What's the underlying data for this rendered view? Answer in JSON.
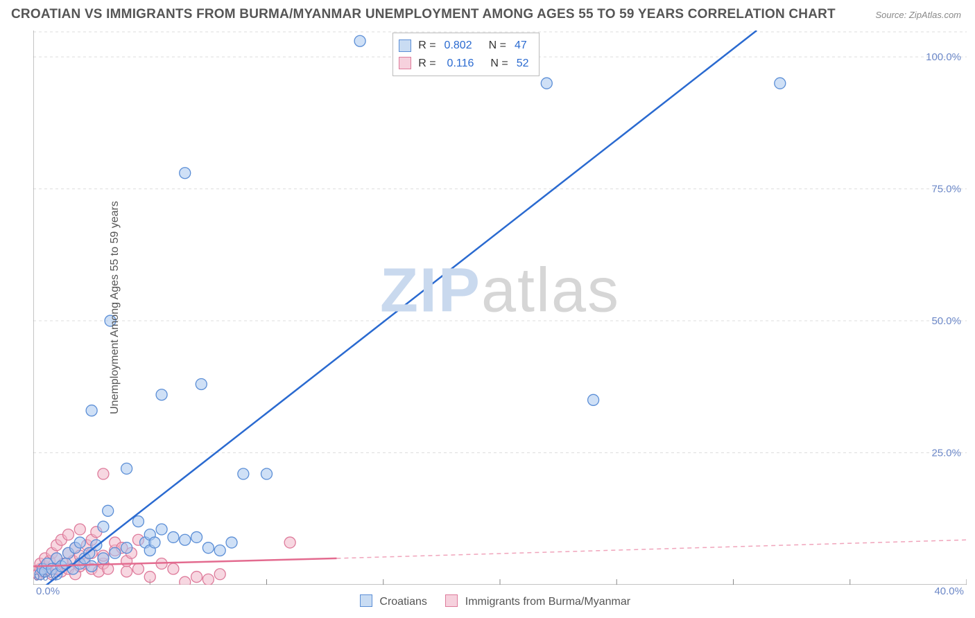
{
  "title": "CROATIAN VS IMMIGRANTS FROM BURMA/MYANMAR UNEMPLOYMENT AMONG AGES 55 TO 59 YEARS CORRELATION CHART",
  "source": "Source: ZipAtlas.com",
  "ylabel": "Unemployment Among Ages 55 to 59 years",
  "watermark_a": "ZIP",
  "watermark_b": "atlas",
  "chart": {
    "type": "scatter",
    "xlim": [
      0,
      40
    ],
    "ylim": [
      0,
      105
    ],
    "xticks": [
      0,
      5,
      10,
      15,
      20,
      25,
      30,
      35,
      40
    ],
    "xtick_labels_show": [
      0,
      40
    ],
    "xtick_labels": {
      "0": "0.0%",
      "40": "40.0%"
    },
    "yticks": [
      25,
      50,
      75,
      100
    ],
    "ytick_labels": {
      "25": "25.0%",
      "50": "50.0%",
      "75": "75.0%",
      "100": "100.0%"
    },
    "grid_color": "#dddddd",
    "background": "#ffffff",
    "series": [
      {
        "name": "Croatians",
        "marker_color_fill": "#a8c6ee",
        "marker_color_stroke": "#5b8ed6",
        "marker_radius": 8,
        "line_color": "#2a6ad0",
        "R": "0.802",
        "N": "47",
        "trend": {
          "x1": 0,
          "y1": -2,
          "x2": 31,
          "y2": 105
        },
        "points_raw": [
          [
            0.3,
            2
          ],
          [
            0.4,
            3
          ],
          [
            0.5,
            2.5
          ],
          [
            0.6,
            4
          ],
          [
            0.8,
            3
          ],
          [
            1,
            2
          ],
          [
            1,
            5
          ],
          [
            1.2,
            3.5
          ],
          [
            1.4,
            4
          ],
          [
            1.5,
            6
          ],
          [
            1.7,
            3
          ],
          [
            1.8,
            7
          ],
          [
            2,
            4
          ],
          [
            2,
            8
          ],
          [
            2.2,
            5
          ],
          [
            2.4,
            6
          ],
          [
            2.5,
            3.5
          ],
          [
            2.7,
            7.5
          ],
          [
            2.5,
            33
          ],
          [
            3,
            5
          ],
          [
            3,
            11
          ],
          [
            3.2,
            14
          ],
          [
            3.5,
            6
          ],
          [
            3.3,
            50
          ],
          [
            4,
            7
          ],
          [
            4,
            22
          ],
          [
            4.5,
            12
          ],
          [
            4.8,
            8
          ],
          [
            5,
            6.5
          ],
          [
            5,
            9.5
          ],
          [
            5.2,
            8
          ],
          [
            5.5,
            10.5
          ],
          [
            5.5,
            36
          ],
          [
            6,
            9
          ],
          [
            6.5,
            8.5
          ],
          [
            6.5,
            78
          ],
          [
            7,
            9
          ],
          [
            7.2,
            38
          ],
          [
            7.5,
            7
          ],
          [
            8,
            6.5
          ],
          [
            8.5,
            8
          ],
          [
            9,
            21
          ],
          [
            10,
            21
          ],
          [
            14,
            103
          ],
          [
            22,
            95
          ],
          [
            24,
            35
          ],
          [
            32,
            95
          ]
        ]
      },
      {
        "name": "Immigrants from Burma/Myanmar",
        "marker_color_fill": "#f1b6c8",
        "marker_color_stroke": "#de7b9b",
        "marker_radius": 8,
        "line_color": "#e36b8f",
        "R": "0.116",
        "N": "52",
        "trend_solid": {
          "x1": 0,
          "y1": 3.5,
          "x2": 13,
          "y2": 5
        },
        "trend_dash": {
          "x1": 13,
          "y1": 5,
          "x2": 40,
          "y2": 8.5
        },
        "points_raw": [
          [
            0.2,
            2
          ],
          [
            0.3,
            3
          ],
          [
            0.3,
            4
          ],
          [
            0.4,
            2.5
          ],
          [
            0.5,
            3.5
          ],
          [
            0.5,
            5
          ],
          [
            0.6,
            3
          ],
          [
            0.7,
            4.5
          ],
          [
            0.8,
            2
          ],
          [
            0.8,
            6
          ],
          [
            1,
            3
          ],
          [
            1,
            5
          ],
          [
            1,
            7.5
          ],
          [
            1.2,
            2.5
          ],
          [
            1.2,
            8.5
          ],
          [
            1.3,
            4
          ],
          [
            1.5,
            3
          ],
          [
            1.5,
            6
          ],
          [
            1.5,
            9.5
          ],
          [
            1.7,
            4.5
          ],
          [
            1.8,
            2
          ],
          [
            1.8,
            7
          ],
          [
            2,
            3.5
          ],
          [
            2,
            5.5
          ],
          [
            2,
            10.5
          ],
          [
            2.2,
            4
          ],
          [
            2.3,
            7.5
          ],
          [
            2.5,
            3
          ],
          [
            2.5,
            6
          ],
          [
            2.5,
            8.5
          ],
          [
            2.7,
            10
          ],
          [
            2.8,
            2.5
          ],
          [
            3,
            4
          ],
          [
            3,
            5.5
          ],
          [
            3,
            21
          ],
          [
            3.2,
            3
          ],
          [
            3.5,
            6.5
          ],
          [
            3.5,
            8
          ],
          [
            3.8,
            7
          ],
          [
            4,
            2.5
          ],
          [
            4,
            4.5
          ],
          [
            4.2,
            6
          ],
          [
            4.5,
            3
          ],
          [
            4.5,
            8.5
          ],
          [
            5,
            1.5
          ],
          [
            5.5,
            4
          ],
          [
            6,
            3
          ],
          [
            6.5,
            0.5
          ],
          [
            7,
            1.5
          ],
          [
            7.5,
            1
          ],
          [
            8,
            2
          ],
          [
            11,
            8
          ]
        ]
      }
    ]
  },
  "bottom_legend": {
    "series1": "Croatians",
    "series2": "Immigrants from Burma/Myanmar"
  }
}
